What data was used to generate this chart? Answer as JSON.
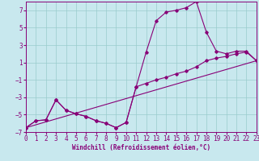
{
  "background_color": "#c8e8ee",
  "grid_color": "#99cccc",
  "line_color": "#880077",
  "xlim": [
    0,
    23
  ],
  "ylim": [
    -7,
    8
  ],
  "xticks": [
    0,
    1,
    2,
    3,
    4,
    5,
    6,
    7,
    8,
    9,
    10,
    11,
    12,
    13,
    14,
    15,
    16,
    17,
    18,
    19,
    20,
    21,
    22,
    23
  ],
  "yticks": [
    -7,
    -5,
    -3,
    -1,
    1,
    3,
    5,
    7
  ],
  "xlabel": "Windchill (Refroidissement éolien,°C)",
  "curve_upper_x": [
    0,
    1,
    2,
    3,
    4,
    5,
    6,
    7,
    8,
    9,
    10,
    11,
    12,
    13,
    14,
    15,
    16,
    17,
    18,
    19,
    20,
    21,
    22,
    23
  ],
  "curve_upper_y": [
    -6.5,
    -5.7,
    -5.6,
    -3.3,
    -4.5,
    -4.9,
    -5.2,
    -5.7,
    -6.0,
    -6.5,
    -5.9,
    -1.8,
    2.2,
    5.8,
    6.8,
    7.0,
    7.3,
    8.0,
    4.5,
    2.3,
    2.0,
    2.3,
    2.3,
    1.2
  ],
  "curve_lower_x": [
    0,
    1,
    2,
    3,
    4,
    5,
    6,
    7,
    8,
    9,
    10,
    11,
    12,
    13,
    14,
    15,
    16,
    17,
    18,
    19,
    20,
    21,
    22,
    23
  ],
  "curve_lower_y": [
    -6.5,
    -5.7,
    -5.6,
    -3.3,
    -4.5,
    -4.9,
    -5.2,
    -5.7,
    -6.0,
    -6.5,
    -5.9,
    -1.8,
    -1.4,
    -1.0,
    -0.7,
    -0.3,
    0.0,
    0.5,
    1.2,
    1.5,
    1.7,
    2.0,
    2.2,
    1.2
  ],
  "line_x": [
    0,
    23
  ],
  "line_y": [
    -6.5,
    1.2
  ]
}
